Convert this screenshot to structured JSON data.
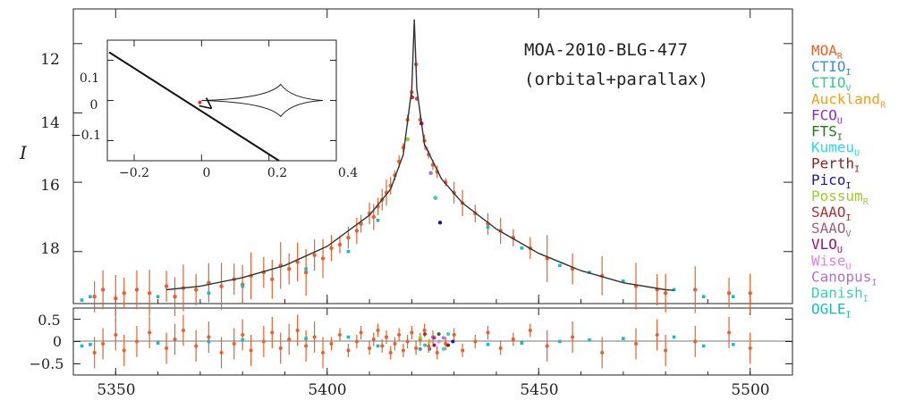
{
  "chart_data": {
    "type": "scatter",
    "title": "MOA-2010-BLG-477",
    "subtitle": "(orbital+parallax)",
    "ylabel": "I",
    "xlim": [
      5340,
      5510
    ],
    "main_ylim": [
      19.5,
      11.0
    ],
    "main_yticks": [
      12,
      14,
      16,
      18
    ],
    "resid_ylim": [
      0.75,
      -0.75
    ],
    "resid_yticks": [
      0.5,
      0,
      -0.5
    ],
    "xticks": [
      5350,
      5400,
      5450,
      5500
    ],
    "legend_position": "right",
    "legend": [
      {
        "name": "MOA",
        "sub": "R",
        "color": "#e8602c"
      },
      {
        "name": "CTIO",
        "sub": "I",
        "color": "#3a8fd8"
      },
      {
        "name": "CTIO",
        "sub": "V",
        "color": "#2ecf86"
      },
      {
        "name": "Auckland",
        "sub": "R",
        "color": "#f0a020"
      },
      {
        "name": "FCO",
        "sub": "U",
        "color": "#8a2be2"
      },
      {
        "name": "FTS",
        "sub": "I",
        "color": "#1f7a1f"
      },
      {
        "name": "Kumeu",
        "sub": "U",
        "color": "#30d8e8"
      },
      {
        "name": "Perth",
        "sub": "I",
        "color": "#8b2222"
      },
      {
        "name": "Pico",
        "sub": "I",
        "color": "#1a1aa0"
      },
      {
        "name": "Possum",
        "sub": "R",
        "color": "#9acd32"
      },
      {
        "name": "SAAO",
        "sub": "I",
        "color": "#b03030"
      },
      {
        "name": "SAAO",
        "sub": "V",
        "color": "#a0607a"
      },
      {
        "name": "VLO",
        "sub": "U",
        "color": "#a0106a"
      },
      {
        "name": "Wise",
        "sub": "U",
        "color": "#e080e0"
      },
      {
        "name": "Canopus",
        "sub": "I",
        "color": "#b070d8"
      },
      {
        "name": "Danish",
        "sub": "I",
        "color": "#3ed0b0"
      },
      {
        "name": "OGLE",
        "sub": "I",
        "color": "#20b8c0"
      }
    ],
    "model_curve": [
      [
        5362,
        19.1
      ],
      [
        5370,
        19.0
      ],
      [
        5380,
        18.75
      ],
      [
        5390,
        18.4
      ],
      [
        5400,
        17.85
      ],
      [
        5410,
        16.95
      ],
      [
        5415,
        16.2
      ],
      [
        5418,
        15.2
      ],
      [
        5420,
        13.3
      ],
      [
        5420.6,
        11.3
      ],
      [
        5421.2,
        13.3
      ],
      [
        5423,
        14.9
      ],
      [
        5427,
        15.9
      ],
      [
        5432,
        16.6
      ],
      [
        5440,
        17.35
      ],
      [
        5450,
        18.05
      ],
      [
        5460,
        18.55
      ],
      [
        5470,
        18.9
      ],
      [
        5480,
        19.1
      ],
      [
        5482,
        19.12
      ]
    ],
    "moa_points": [
      [
        5345,
        19.3
      ],
      [
        5347,
        19.1
      ],
      [
        5350,
        19.35
      ],
      [
        5352,
        19.2
      ],
      [
        5355,
        19.1
      ],
      [
        5358,
        19.2
      ],
      [
        5362,
        19.0
      ],
      [
        5364,
        19.3
      ],
      [
        5366,
        19.05
      ],
      [
        5369,
        19.1
      ],
      [
        5372,
        18.9
      ],
      [
        5375,
        19.0
      ],
      [
        5378,
        18.8
      ],
      [
        5380,
        18.95
      ],
      [
        5382,
        18.7
      ],
      [
        5385,
        18.6
      ],
      [
        5387,
        18.8
      ],
      [
        5389,
        18.4
      ],
      [
        5391,
        18.5
      ],
      [
        5393,
        18.3
      ],
      [
        5395,
        18.6
      ],
      [
        5397,
        18.1
      ],
      [
        5399,
        18.2
      ],
      [
        5401,
        17.9
      ],
      [
        5403,
        17.8
      ],
      [
        5405,
        17.6
      ],
      [
        5407,
        17.4
      ],
      [
        5408,
        17.2
      ],
      [
        5410,
        16.9
      ],
      [
        5411,
        17.0
      ],
      [
        5412,
        16.7
      ],
      [
        5413,
        16.5
      ],
      [
        5414,
        16.3
      ],
      [
        5415,
        16.1
      ],
      [
        5416,
        15.8
      ],
      [
        5417,
        15.4
      ],
      [
        5418,
        15.0
      ],
      [
        5419,
        14.2
      ],
      [
        5420,
        13.4
      ],
      [
        5421,
        12.6
      ],
      [
        5422,
        14.2
      ],
      [
        5423,
        14.8
      ],
      [
        5424,
        15.2
      ],
      [
        5425,
        15.5
      ],
      [
        5426,
        15.7
      ],
      [
        5428,
        16.0
      ],
      [
        5430,
        16.3
      ],
      [
        5432,
        16.6
      ],
      [
        5435,
        16.9
      ],
      [
        5438,
        17.2
      ],
      [
        5441,
        17.4
      ],
      [
        5444,
        17.6
      ],
      [
        5448,
        17.9
      ],
      [
        5452,
        18.2
      ],
      [
        5458,
        18.5
      ],
      [
        5465,
        18.7
      ],
      [
        5473,
        19.0
      ],
      [
        5478,
        19.1
      ],
      [
        5480,
        19.2
      ],
      [
        5487,
        19.1
      ],
      [
        5495,
        19.2
      ],
      [
        5500,
        19.2
      ]
    ],
    "ogle_points": [
      [
        5342,
        19.4
      ],
      [
        5344,
        19.3
      ],
      [
        5360,
        19.3
      ],
      [
        5372,
        19.2
      ],
      [
        5380,
        19.0
      ],
      [
        5395,
        18.5
      ],
      [
        5405,
        18.0
      ],
      [
        5412,
        17.1
      ],
      [
        5438,
        17.3
      ],
      [
        5446,
        17.9
      ],
      [
        5455,
        18.4
      ],
      [
        5462,
        18.6
      ],
      [
        5470,
        18.85
      ],
      [
        5482,
        19.1
      ],
      [
        5489,
        19.3
      ],
      [
        5496,
        19.3
      ]
    ],
    "inset": {
      "xlim": [
        -0.2,
        0.4
      ],
      "ylim": [
        -0.15,
        0.15
      ],
      "xticks": [
        -0.2,
        0,
        0.2,
        0.4
      ],
      "yticks": [
        0.1,
        0,
        -0.1
      ]
    }
  },
  "labels": {
    "title": "MOA-2010-BLG-477",
    "subtitle": "(orbital+parallax)",
    "ylabel": "I",
    "xtick_5350": "5350",
    "xtick_5400": "5400",
    "xtick_5450": "5450",
    "xtick_5500": "5500",
    "ytick_12": "12",
    "ytick_14": "14",
    "ytick_16": "16",
    "ytick_18": "18",
    "rtick_05": "0.5",
    "rtick_0": "0",
    "rtick_m05": "−0.5",
    "itick_x1": "−0.2",
    "itick_x2": "0",
    "itick_x3": "0.2",
    "itick_x4": "0.4",
    "itick_y1": "0.1",
    "itick_y2": "0",
    "itick_y3": "−0.1"
  }
}
